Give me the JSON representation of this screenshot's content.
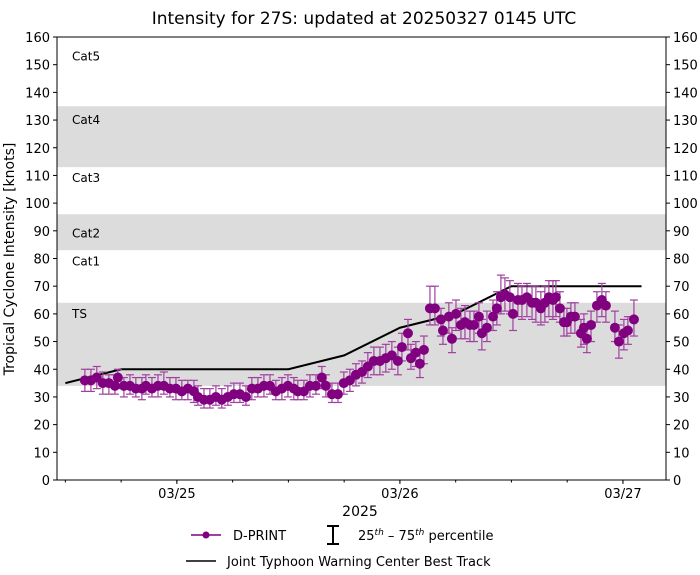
{
  "chart_data": {
    "type": "scatter",
    "title": "Intensity for 27S: updated at 20250327 0145 UTC",
    "xlabel": "2025",
    "ylabel": "Tropical Cyclone Intensity [knots]",
    "xlim": [
      "2025-03-24T11:06",
      "2025-03-27T04:38"
    ],
    "ylim": [
      0,
      160
    ],
    "y_ticks": [
      0,
      10,
      20,
      30,
      40,
      50,
      60,
      70,
      80,
      90,
      100,
      110,
      120,
      130,
      140,
      150,
      160
    ],
    "x_ticks": [
      {
        "t": "2025-03-25T00:00",
        "label": "03/25"
      },
      {
        "t": "2025-03-26T00:00",
        "label": "03/26"
      },
      {
        "t": "2025-03-27T00:00",
        "label": "03/27"
      }
    ],
    "x_minor_tick_hours": 6,
    "grid": false,
    "category_bands": [
      {
        "label": "TS",
        "lo": 34,
        "hi": 64,
        "shaded": true,
        "label_y": 60
      },
      {
        "label": "Cat1",
        "lo": 64,
        "hi": 83,
        "shaded": false,
        "label_y": 79
      },
      {
        "label": "Cat2",
        "lo": 83,
        "hi": 96,
        "shaded": true,
        "label_y": 89
      },
      {
        "label": "Cat3",
        "lo": 96,
        "hi": 113,
        "shaded": false,
        "label_y": 109
      },
      {
        "label": "Cat4",
        "lo": 113,
        "hi": 135,
        "shaded": true,
        "label_y": 130
      },
      {
        "label": "Cat5",
        "lo": 135,
        "hi": 160,
        "shaded": false,
        "label_y": 153
      }
    ],
    "colors": {
      "dprint": "#800080",
      "errorbar": "#a040a0",
      "best_track": "#000000",
      "band": "#dcdcdc"
    },
    "series": [
      {
        "name": "D-PRINT",
        "points": [
          [
            "2025-03-24T14:06",
            36,
            32,
            40
          ],
          [
            "2025-03-24T14:45",
            36,
            32,
            40
          ],
          [
            "2025-03-24T15:23",
            37,
            33,
            41
          ],
          [
            "2025-03-24T16:02",
            35,
            31,
            39
          ],
          [
            "2025-03-24T16:41",
            35,
            31,
            38
          ],
          [
            "2025-03-24T17:20",
            34,
            31,
            38
          ],
          [
            "2025-03-24T17:39",
            37,
            33,
            40
          ],
          [
            "2025-03-24T18:18",
            34,
            30,
            37
          ],
          [
            "2025-03-24T18:57",
            34,
            31,
            38
          ],
          [
            "2025-03-24T19:35",
            33,
            30,
            37
          ],
          [
            "2025-03-24T20:14",
            33,
            29,
            37
          ],
          [
            "2025-03-24T20:40",
            34,
            31,
            38
          ],
          [
            "2025-03-24T21:19",
            33,
            30,
            37
          ],
          [
            "2025-03-24T21:58",
            34,
            30,
            38
          ],
          [
            "2025-03-24T22:36",
            34,
            31,
            39
          ],
          [
            "2025-03-24T23:15",
            33,
            30,
            37
          ],
          [
            "2025-03-24T23:54",
            33,
            29,
            37
          ],
          [
            "2025-03-25T00:32",
            32,
            29,
            36
          ],
          [
            "2025-03-25T01:11",
            33,
            29,
            36
          ],
          [
            "2025-03-25T01:50",
            32,
            28,
            36
          ],
          [
            "2025-03-25T02:16",
            30,
            27,
            34
          ],
          [
            "2025-03-25T02:55",
            29,
            26,
            33
          ],
          [
            "2025-03-25T03:33",
            29,
            26,
            33
          ],
          [
            "2025-03-25T04:12",
            30,
            27,
            34
          ],
          [
            "2025-03-25T04:50",
            29,
            26,
            33
          ],
          [
            "2025-03-25T05:29",
            30,
            27,
            34
          ],
          [
            "2025-03-25T06:08",
            31,
            28,
            35
          ],
          [
            "2025-03-25T06:47",
            31,
            28,
            35
          ],
          [
            "2025-03-25T07:26",
            30,
            27,
            34
          ],
          [
            "2025-03-25T08:04",
            33,
            29,
            37
          ],
          [
            "2025-03-25T08:43",
            33,
            30,
            37
          ],
          [
            "2025-03-25T09:22",
            34,
            30,
            38
          ],
          [
            "2025-03-25T10:01",
            34,
            31,
            38
          ],
          [
            "2025-03-25T10:39",
            32,
            29,
            36
          ],
          [
            "2025-03-25T11:18",
            33,
            29,
            37
          ],
          [
            "2025-03-25T11:57",
            34,
            30,
            38
          ],
          [
            "2025-03-25T12:35",
            33,
            29,
            37
          ],
          [
            "2025-03-25T13:01",
            32,
            29,
            36
          ],
          [
            "2025-03-25T13:40",
            32,
            29,
            36
          ],
          [
            "2025-03-25T14:19",
            34,
            30,
            38
          ],
          [
            "2025-03-25T14:58",
            34,
            31,
            38
          ],
          [
            "2025-03-25T15:36",
            37,
            33,
            41
          ],
          [
            "2025-03-25T16:02",
            34,
            30,
            38
          ],
          [
            "2025-03-25T16:41",
            31,
            28,
            35
          ],
          [
            "2025-03-25T17:20",
            31,
            28,
            35
          ],
          [
            "2025-03-25T17:58",
            35,
            31,
            39
          ],
          [
            "2025-03-25T18:37",
            36,
            32,
            40
          ],
          [
            "2025-03-25T19:16",
            38,
            34,
            42
          ],
          [
            "2025-03-25T19:55",
            39,
            35,
            43
          ],
          [
            "2025-03-25T20:33",
            41,
            37,
            46
          ],
          [
            "2025-03-25T21:12",
            43,
            38,
            48
          ],
          [
            "2025-03-25T21:51",
            43,
            38,
            48
          ],
          [
            "2025-03-25T22:29",
            44,
            39,
            49
          ],
          [
            "2025-03-25T23:08",
            45,
            40,
            50
          ],
          [
            "2025-03-25T23:47",
            43,
            38,
            48
          ],
          [
            "2025-03-26T00:13",
            48,
            43,
            53
          ],
          [
            "2025-03-26T00:52",
            53,
            47,
            58
          ],
          [
            "2025-03-26T01:11",
            44,
            40,
            49
          ],
          [
            "2025-03-26T01:43",
            46,
            41,
            50
          ],
          [
            "2025-03-26T02:09",
            42,
            37,
            46
          ],
          [
            "2025-03-26T02:35",
            47,
            42,
            52
          ],
          [
            "2025-03-26T03:14",
            62,
            56,
            70
          ],
          [
            "2025-03-26T03:46",
            62,
            56,
            70
          ],
          [
            "2025-03-26T04:25",
            58,
            52,
            62
          ],
          [
            "2025-03-26T04:38",
            54,
            49,
            59
          ],
          [
            "2025-03-26T05:16",
            59,
            53,
            64
          ],
          [
            "2025-03-26T05:36",
            51,
            46,
            55
          ],
          [
            "2025-03-26T06:02",
            60,
            54,
            65
          ],
          [
            "2025-03-26T06:34",
            56,
            51,
            62
          ],
          [
            "2025-03-26T07:00",
            57,
            51,
            63
          ],
          [
            "2025-03-26T07:32",
            56,
            50,
            61
          ],
          [
            "2025-03-26T07:58",
            56,
            50,
            61
          ],
          [
            "2025-03-26T08:30",
            59,
            53,
            64
          ],
          [
            "2025-03-26T08:49",
            53,
            47,
            58
          ],
          [
            "2025-03-26T09:22",
            55,
            50,
            61
          ],
          [
            "2025-03-26T10:01",
            59,
            54,
            65
          ],
          [
            "2025-03-26T10:26",
            62,
            56,
            68
          ],
          [
            "2025-03-26T10:52",
            66,
            60,
            74
          ],
          [
            "2025-03-26T11:18",
            67,
            61,
            73
          ],
          [
            "2025-03-26T11:50",
            66,
            60,
            72
          ],
          [
            "2025-03-26T12:10",
            60,
            54,
            65
          ],
          [
            "2025-03-26T12:42",
            65,
            59,
            71
          ],
          [
            "2025-03-26T13:08",
            65,
            58,
            70
          ],
          [
            "2025-03-26T13:40",
            66,
            59,
            71
          ],
          [
            "2025-03-26T14:13",
            64,
            58,
            70
          ],
          [
            "2025-03-26T14:38",
            64,
            57,
            70
          ],
          [
            "2025-03-26T15:10",
            62,
            56,
            68
          ],
          [
            "2025-03-26T15:36",
            64,
            57,
            70
          ],
          [
            "2025-03-26T16:02",
            66,
            59,
            72
          ],
          [
            "2025-03-26T16:28",
            65,
            58,
            72
          ],
          [
            "2025-03-26T16:47",
            66,
            59,
            72
          ],
          [
            "2025-03-26T17:13",
            62,
            57,
            68
          ],
          [
            "2025-03-26T17:39",
            57,
            52,
            62
          ],
          [
            "2025-03-26T17:58",
            57,
            52,
            62
          ],
          [
            "2025-03-26T18:24",
            59,
            53,
            64
          ],
          [
            "2025-03-26T18:50",
            59,
            53,
            64
          ],
          [
            "2025-03-26T19:29",
            53,
            48,
            58
          ],
          [
            "2025-03-26T19:48",
            55,
            49,
            60
          ],
          [
            "2025-03-26T20:07",
            51,
            46,
            56
          ],
          [
            "2025-03-26T20:34",
            56,
            50,
            61
          ],
          [
            "2025-03-26T21:12",
            63,
            57,
            68
          ],
          [
            "2025-03-26T21:44",
            65,
            59,
            71
          ],
          [
            "2025-03-26T22:10",
            63,
            57,
            68
          ],
          [
            "2025-03-26T23:08",
            55,
            50,
            61
          ],
          [
            "2025-03-26T23:34",
            50,
            44,
            56
          ],
          [
            "2025-03-27T00:06",
            53,
            47,
            58
          ],
          [
            "2025-03-27T00:32",
            54,
            49,
            59
          ],
          [
            "2025-03-27T01:11",
            58,
            52,
            65
          ]
        ]
      },
      {
        "name": "Joint Typhoon Warning Center Best Track",
        "points": [
          [
            "2025-03-24T12:00",
            35
          ],
          [
            "2025-03-24T18:00",
            40
          ],
          [
            "2025-03-25T12:00",
            40
          ],
          [
            "2025-03-25T18:00",
            45
          ],
          [
            "2025-03-26T00:00",
            55
          ],
          [
            "2025-03-26T06:00",
            60
          ],
          [
            "2025-03-26T12:00",
            70
          ],
          [
            "2025-03-27T02:00",
            70
          ]
        ]
      }
    ],
    "legend": {
      "placement": "bottom",
      "dprint": "D-PRINT",
      "pct_lo": "25",
      "pct_hi": "75",
      "pct_sup": "th",
      "pct_dash": " – ",
      "pct_tail": " percentile",
      "best_track": "Joint Typhoon Warning Center Best Track"
    }
  }
}
